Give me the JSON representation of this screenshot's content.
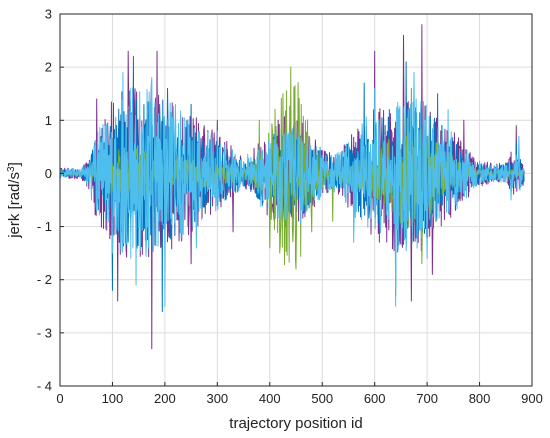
{
  "chart_data": {
    "type": "line",
    "title": "",
    "xlabel": "trajectory position id",
    "ylabel_main": "jerk [rad/s",
    "ylabel_sup": "3",
    "ylabel_end": "]",
    "xlim": [
      0,
      900
    ],
    "ylim": [
      -4,
      3
    ],
    "xticks": [
      0,
      100,
      200,
      300,
      400,
      500,
      600,
      700,
      800,
      900
    ],
    "yticks": [
      -4,
      -3,
      -2,
      -1,
      0,
      1,
      2,
      3
    ],
    "ytick_labels": [
      "- 4",
      "- 3",
      "- 2",
      "- 1",
      "0",
      "1",
      "2",
      "3"
    ],
    "grid": true,
    "n_points": 885,
    "series": [
      {
        "color": "#7E2F8E",
        "peaks": [
          {
            "x": 50,
            "y": 0.2
          },
          {
            "x": 70,
            "y": 1.4
          },
          {
            "x": 110,
            "y": -2.4
          },
          {
            "x": 130,
            "y": 2.3
          },
          {
            "x": 175,
            "y": -3.3
          },
          {
            "x": 185,
            "y": 2.3
          },
          {
            "x": 230,
            "y": 1.1
          },
          {
            "x": 250,
            "y": -1.7
          },
          {
            "x": 300,
            "y": 1.0
          },
          {
            "x": 330,
            "y": -1.1
          },
          {
            "x": 440,
            "y": 1.2
          },
          {
            "x": 600,
            "y": 2.3
          },
          {
            "x": 655,
            "y": 2.6
          },
          {
            "x": 670,
            "y": -2.4
          },
          {
            "x": 690,
            "y": 2.8
          },
          {
            "x": 710,
            "y": -1.9
          },
          {
            "x": 770,
            "y": 1.0
          },
          {
            "x": 860,
            "y": 0.4
          },
          {
            "x": 870,
            "y": 0.9
          }
        ]
      },
      {
        "color": "#0072BD",
        "peaks": [
          {
            "x": 100,
            "y": -2.2
          },
          {
            "x": 140,
            "y": 2.2
          },
          {
            "x": 195,
            "y": -2.6
          },
          {
            "x": 205,
            "y": 1.6
          },
          {
            "x": 250,
            "y": 1.3
          },
          {
            "x": 430,
            "y": -1.0
          },
          {
            "x": 580,
            "y": 1.7
          },
          {
            "x": 640,
            "y": -2.3
          },
          {
            "x": 660,
            "y": 2.1
          },
          {
            "x": 720,
            "y": 1.5
          },
          {
            "x": 870,
            "y": 0.6
          }
        ]
      },
      {
        "color": "#77AC30",
        "peaks": [
          {
            "x": 380,
            "y": 1.0
          },
          {
            "x": 400,
            "y": -1.4
          },
          {
            "x": 425,
            "y": 1.5
          },
          {
            "x": 440,
            "y": 2.0
          },
          {
            "x": 450,
            "y": -1.8
          },
          {
            "x": 460,
            "y": 1.3
          },
          {
            "x": 480,
            "y": -1.1
          },
          {
            "x": 520,
            "y": -0.9
          },
          {
            "x": 670,
            "y": 1.6
          },
          {
            "x": 690,
            "y": -1.7
          }
        ]
      },
      {
        "color": "#4DBEEE",
        "peaks": [
          {
            "x": 60,
            "y": -0.5
          },
          {
            "x": 100,
            "y": -1.5
          },
          {
            "x": 120,
            "y": 1.9
          },
          {
            "x": 145,
            "y": -2.1
          },
          {
            "x": 175,
            "y": 1.8
          },
          {
            "x": 200,
            "y": -2.5
          },
          {
            "x": 220,
            "y": 1.3
          },
          {
            "x": 260,
            "y": -1.4
          },
          {
            "x": 300,
            "y": 0.8
          },
          {
            "x": 560,
            "y": -1.3
          },
          {
            "x": 600,
            "y": 1.6
          },
          {
            "x": 640,
            "y": -2.5
          },
          {
            "x": 675,
            "y": 1.9
          },
          {
            "x": 700,
            "y": -1.6
          },
          {
            "x": 740,
            "y": 1.2
          },
          {
            "x": 860,
            "y": -0.5
          },
          {
            "x": 875,
            "y": 0.7
          }
        ]
      }
    ]
  }
}
